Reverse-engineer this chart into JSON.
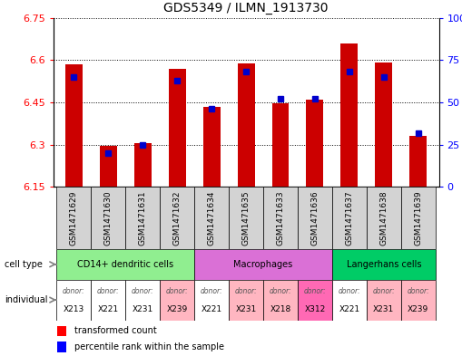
{
  "title": "GDS5349 / ILMN_1913730",
  "samples": [
    "GSM1471629",
    "GSM1471630",
    "GSM1471631",
    "GSM1471632",
    "GSM1471634",
    "GSM1471635",
    "GSM1471633",
    "GSM1471636",
    "GSM1471637",
    "GSM1471638",
    "GSM1471639"
  ],
  "transformed_count": [
    6.585,
    6.295,
    6.305,
    6.568,
    6.435,
    6.587,
    6.447,
    6.458,
    6.66,
    6.592,
    6.332
  ],
  "percentile_rank": [
    65,
    20,
    25,
    63,
    46,
    68,
    52,
    52,
    68,
    65,
    32
  ],
  "y_min": 6.15,
  "y_max": 6.75,
  "y_ticks": [
    6.15,
    6.3,
    6.45,
    6.6,
    6.75
  ],
  "y2_ticks": [
    0,
    25,
    50,
    75,
    100
  ],
  "cell_types": [
    {
      "label": "CD14+ dendritic cells",
      "start": 0,
      "end": 4,
      "color": "#90EE90"
    },
    {
      "label": "Macrophages",
      "start": 4,
      "end": 8,
      "color": "#DA70D6"
    },
    {
      "label": "Langerhans cells",
      "start": 8,
      "end": 11,
      "color": "#00CC66"
    }
  ],
  "donors": [
    "X213",
    "X221",
    "X231",
    "X239",
    "X221",
    "X231",
    "X218",
    "X312",
    "X221",
    "X231",
    "X239"
  ],
  "donor_colors": [
    "#FFFFFF",
    "#FFFFFF",
    "#FFFFFF",
    "#FFB6C1",
    "#FFFFFF",
    "#FFB6C1",
    "#FFB6C1",
    "#FF69B4",
    "#FFFFFF",
    "#FFB6C1",
    "#FFB6C1"
  ],
  "bar_color": "#CC0000",
  "percentile_color": "#0000CC",
  "bar_width": 0.5,
  "background_color": "#FFFFFF",
  "plot_bg": "#FFFFFF",
  "sample_bg": "#D3D3D3"
}
